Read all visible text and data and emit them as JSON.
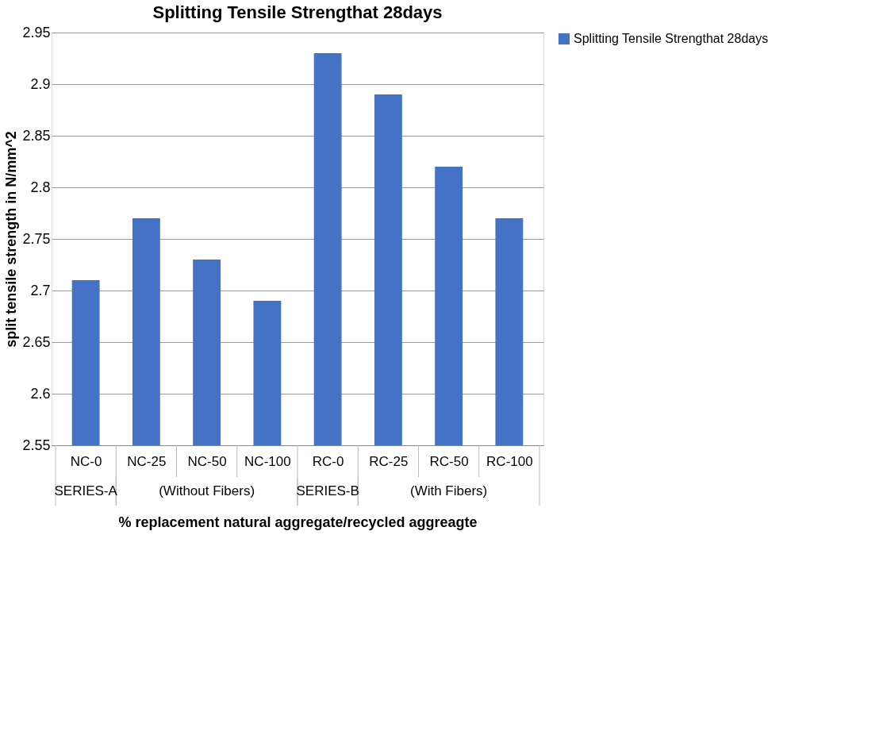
{
  "chart_data": {
    "type": "bar",
    "title": "Splitting Tensile Strengthat 28days",
    "xlabel": "% replacement natural aggregate/recycled aggreagte",
    "ylabel": "split tensile strength in N/mm^2",
    "categories": [
      "NC-0",
      "NC-25",
      "NC-50",
      "NC-100",
      "RC-0",
      "RC-25",
      "RC-50",
      "RC-100"
    ],
    "series": [
      {
        "name": "Splitting Tensile Strengthat 28days",
        "color": "#4472c4",
        "values": [
          2.71,
          2.77,
          2.73,
          2.69,
          2.93,
          2.89,
          2.82,
          2.77
        ]
      }
    ],
    "ylim": [
      2.55,
      2.95
    ],
    "yticks": [
      2.55,
      2.6,
      2.65,
      2.7,
      2.75,
      2.8,
      2.85,
      2.9,
      2.95
    ],
    "annotations": [
      "SERIES-A",
      "(Without Fibers)",
      "SERIES-B",
      "(With Fibers)"
    ],
    "grid": "y",
    "legend": "right"
  }
}
